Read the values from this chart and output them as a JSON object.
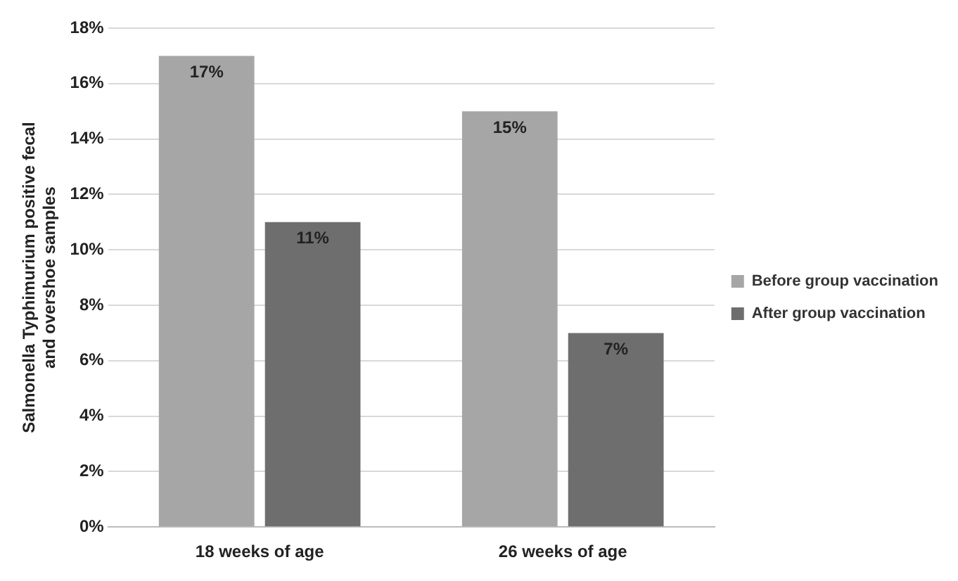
{
  "chart_data": {
    "type": "bar",
    "ylabel": "Salmonella Typhimurium positive fecal and overshoe samples",
    "categories": [
      "18 weeks of age",
      "26 weeks of age"
    ],
    "series": [
      {
        "name": "Before group vaccination",
        "color": "#a6a6a6",
        "values": [
          17,
          15
        ],
        "value_labels": [
          "17%",
          "15%"
        ]
      },
      {
        "name": "After group vaccination",
        "color": "#6e6e6e",
        "values": [
          11,
          7
        ],
        "value_labels": [
          "11%",
          "7%"
        ]
      }
    ],
    "ylim": [
      0,
      18
    ],
    "yticks": [
      {
        "value": 0,
        "label": "0%"
      },
      {
        "value": 2,
        "label": "2%"
      },
      {
        "value": 4,
        "label": "4%"
      },
      {
        "value": 6,
        "label": "6%"
      },
      {
        "value": 8,
        "label": "8%"
      },
      {
        "value": 10,
        "label": "10%"
      },
      {
        "value": 12,
        "label": "12%"
      },
      {
        "value": 14,
        "label": "14%"
      },
      {
        "value": 16,
        "label": "16%"
      },
      {
        "value": 18,
        "label": "18%"
      }
    ],
    "grid": "y",
    "legend": "right"
  }
}
